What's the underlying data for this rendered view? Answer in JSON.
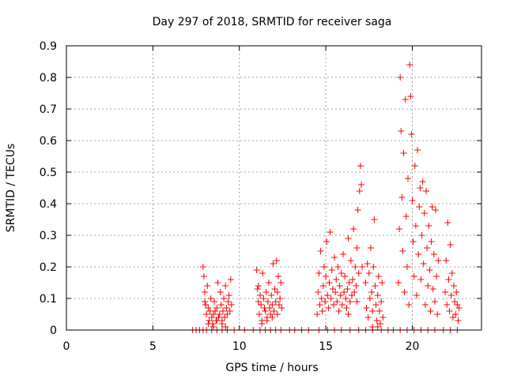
{
  "chart_data": {
    "type": "scatter",
    "title": "Day 297 of 2018, SRMTID for receiver saga",
    "xlabel": "GPS time / hours",
    "ylabel": "SRMTID / TECUs",
    "xlim": [
      0,
      24
    ],
    "ylim": [
      0,
      0.9
    ],
    "xticks": [
      0,
      5,
      10,
      15,
      20
    ],
    "yticks": [
      0,
      0.1,
      0.2,
      0.3,
      0.4,
      0.5,
      0.6,
      0.7,
      0.8,
      0.9
    ],
    "x_tick_labels": [
      "0",
      "5",
      "10",
      "15",
      "20"
    ],
    "y_tick_labels": [
      "0",
      "0.1",
      "0.2",
      "0.3",
      "0.4",
      "0.5",
      "0.6",
      "0.7",
      "0.8",
      "0.9"
    ],
    "grid": true,
    "marker": "+",
    "color": "#ff0000",
    "series": [
      {
        "name": "SRMTID",
        "points": [
          [
            7.3,
            0
          ],
          [
            7.5,
            0
          ],
          [
            7.7,
            0
          ],
          [
            7.9,
            0
          ],
          [
            8.1,
            0
          ],
          [
            8.4,
            0
          ],
          [
            8.7,
            0
          ],
          [
            9.0,
            0
          ],
          [
            9.3,
            0
          ],
          [
            9.7,
            0
          ],
          [
            7.9,
            0.2
          ],
          [
            7.95,
            0.17
          ],
          [
            8.0,
            0.12
          ],
          [
            8.05,
            0.08
          ],
          [
            8.1,
            0.05
          ],
          [
            8.15,
            0.14
          ],
          [
            8.2,
            0.07
          ],
          [
            8.25,
            0.03
          ],
          [
            8.3,
            0.06
          ],
          [
            8.35,
            0.1
          ],
          [
            8.4,
            0.04
          ],
          [
            8.45,
            0.02
          ],
          [
            8.5,
            0.05
          ],
          [
            8.55,
            0.09
          ],
          [
            8.6,
            0.06
          ],
          [
            8.65,
            0.03
          ],
          [
            8.7,
            0.07
          ],
          [
            8.75,
            0.15
          ],
          [
            8.8,
            0.04
          ],
          [
            8.85,
            0.05
          ],
          [
            8.9,
            0.12
          ],
          [
            8.95,
            0.08
          ],
          [
            9.0,
            0.03
          ],
          [
            9.05,
            0.06
          ],
          [
            9.1,
            0.1
          ],
          [
            9.15,
            0.04
          ],
          [
            9.2,
            0.14
          ],
          [
            9.25,
            0.07
          ],
          [
            9.3,
            0.05
          ],
          [
            9.35,
            0.09
          ],
          [
            9.4,
            0.11
          ],
          [
            9.45,
            0.06
          ],
          [
            9.5,
            0.16
          ],
          [
            9.55,
            0.08
          ],
          [
            8.2,
            0.02
          ],
          [
            8.5,
            0.01
          ],
          [
            8.7,
            0.03
          ],
          [
            9.0,
            0.02
          ],
          [
            9.2,
            0.01
          ],
          [
            8.0,
            0.09
          ],
          [
            10.3,
            0
          ],
          [
            10.8,
            0
          ],
          [
            11.2,
            0
          ],
          [
            11.5,
            0
          ],
          [
            11.8,
            0
          ],
          [
            12.1,
            0
          ],
          [
            12.4,
            0
          ],
          [
            12.9,
            0
          ],
          [
            11.0,
            0.19
          ],
          [
            11.05,
            0.13
          ],
          [
            11.1,
            0.09
          ],
          [
            11.15,
            0.05
          ],
          [
            11.2,
            0.11
          ],
          [
            11.25,
            0.08
          ],
          [
            11.3,
            0.03
          ],
          [
            11.35,
            0.18
          ],
          [
            11.4,
            0.1
          ],
          [
            11.45,
            0.07
          ],
          [
            11.5,
            0.06
          ],
          [
            11.55,
            0.12
          ],
          [
            11.6,
            0.04
          ],
          [
            11.65,
            0.09
          ],
          [
            11.7,
            0.15
          ],
          [
            11.75,
            0.07
          ],
          [
            11.8,
            0.05
          ],
          [
            11.85,
            0.11
          ],
          [
            11.9,
            0.08
          ],
          [
            11.95,
            0.21
          ],
          [
            12.0,
            0.06
          ],
          [
            12.05,
            0.13
          ],
          [
            12.1,
            0.09
          ],
          [
            12.15,
            0.22
          ],
          [
            12.2,
            0.12
          ],
          [
            12.25,
            0.17
          ],
          [
            12.3,
            0.08
          ],
          [
            12.35,
            0.1
          ],
          [
            12.4,
            0.15
          ],
          [
            12.45,
            0.07
          ],
          [
            11.3,
            0.02
          ],
          [
            11.6,
            0.03
          ],
          [
            11.9,
            0.04
          ],
          [
            12.2,
            0.05
          ],
          [
            11.1,
            0.14
          ],
          [
            13.2,
            0
          ],
          [
            13.6,
            0
          ],
          [
            14.0,
            0
          ],
          [
            14.6,
            0
          ],
          [
            15.1,
            0
          ],
          [
            15.5,
            0
          ],
          [
            15.9,
            0
          ],
          [
            16.4,
            0
          ],
          [
            16.9,
            0
          ],
          [
            17.3,
            0
          ],
          [
            17.7,
            0
          ],
          [
            18.2,
            0
          ],
          [
            18.6,
            0
          ],
          [
            14.5,
            0.05
          ],
          [
            14.55,
            0.12
          ],
          [
            14.6,
            0.18
          ],
          [
            14.65,
            0.08
          ],
          [
            14.7,
            0.25
          ],
          [
            14.75,
            0.1
          ],
          [
            14.8,
            0.06
          ],
          [
            14.85,
            0.14
          ],
          [
            14.9,
            0.2
          ],
          [
            14.95,
            0.09
          ],
          [
            15.0,
            0.17
          ],
          [
            15.05,
            0.28
          ],
          [
            15.1,
            0.11
          ],
          [
            15.15,
            0.07
          ],
          [
            15.2,
            0.15
          ],
          [
            15.25,
            0.31
          ],
          [
            15.3,
            0.1
          ],
          [
            15.35,
            0.19
          ],
          [
            15.4,
            0.13
          ],
          [
            15.45,
            0.08
          ],
          [
            15.5,
            0.23
          ],
          [
            15.55,
            0.12
          ],
          [
            15.6,
            0.16
          ],
          [
            15.65,
            0.09
          ],
          [
            15.7,
            0.2
          ],
          [
            15.75,
            0.06
          ],
          [
            15.8,
            0.14
          ],
          [
            15.85,
            0.11
          ],
          [
            15.9,
            0.18
          ],
          [
            15.95,
            0.08
          ],
          [
            16.0,
            0.24
          ],
          [
            16.05,
            0.12
          ],
          [
            16.1,
            0.17
          ],
          [
            16.15,
            0.1
          ],
          [
            16.2,
            0.07
          ],
          [
            16.25,
            0.13
          ],
          [
            16.3,
            0.29
          ],
          [
            16.35,
            0.15
          ],
          [
            16.4,
            0.09
          ],
          [
            16.45,
            0.22
          ],
          [
            16.5,
            0.11
          ],
          [
            16.55,
            0.16
          ],
          [
            16.6,
            0.32
          ],
          [
            16.65,
            0.12
          ],
          [
            16.7,
            0.2
          ],
          [
            16.75,
            0.14
          ],
          [
            16.8,
            0.26
          ],
          [
            16.85,
            0.38
          ],
          [
            16.9,
            0.18
          ],
          [
            16.95,
            0.44
          ],
          [
            17.0,
            0.52
          ],
          [
            17.05,
            0.46
          ],
          [
            17.1,
            0.2
          ],
          [
            16.8,
            0.09
          ],
          [
            16.3,
            0.05
          ],
          [
            17.3,
            0.15
          ],
          [
            17.35,
            0.07
          ],
          [
            17.4,
            0.21
          ],
          [
            17.45,
            0.04
          ],
          [
            17.5,
            0.18
          ],
          [
            17.55,
            0.1
          ],
          [
            17.6,
            0.26
          ],
          [
            17.65,
            0.12
          ],
          [
            17.7,
            0.06
          ],
          [
            17.75,
            0.2
          ],
          [
            17.8,
            0.35
          ],
          [
            17.85,
            0.14
          ],
          [
            17.9,
            0.08
          ],
          [
            17.95,
            0.03
          ],
          [
            18.0,
            0.11
          ],
          [
            18.05,
            0.17
          ],
          [
            18.1,
            0.06
          ],
          [
            18.15,
            0.02
          ],
          [
            18.2,
            0.09
          ],
          [
            18.25,
            0.15
          ],
          [
            18.3,
            0.04
          ],
          [
            17.7,
            0.01
          ],
          [
            18.0,
            0.01
          ],
          [
            18.9,
            0
          ],
          [
            19.3,
            0
          ],
          [
            19.7,
            0
          ],
          [
            20.1,
            0
          ],
          [
            20.5,
            0
          ],
          [
            20.9,
            0
          ],
          [
            21.3,
            0
          ],
          [
            21.8,
            0
          ],
          [
            22.2,
            0
          ],
          [
            22.6,
            0
          ],
          [
            19.2,
            0.15
          ],
          [
            19.25,
            0.32
          ],
          [
            19.3,
            0.8
          ],
          [
            19.35,
            0.63
          ],
          [
            19.4,
            0.42
          ],
          [
            19.45,
            0.25
          ],
          [
            19.5,
            0.56
          ],
          [
            19.55,
            0.12
          ],
          [
            19.6,
            0.73
          ],
          [
            19.65,
            0.36
          ],
          [
            19.7,
            0.2
          ],
          [
            19.75,
            0.48
          ],
          [
            19.8,
            0.08
          ],
          [
            19.85,
            0.84
          ],
          [
            19.9,
            0.74
          ],
          [
            19.95,
            0.62
          ],
          [
            20.0,
            0.41
          ],
          [
            20.05,
            0.28
          ],
          [
            20.1,
            0.17
          ],
          [
            20.15,
            0.52
          ],
          [
            20.2,
            0.33
          ],
          [
            20.25,
            0.11
          ],
          [
            20.3,
            0.57
          ],
          [
            20.35,
            0.24
          ],
          [
            20.4,
            0.39
          ],
          [
            20.45,
            0.45
          ],
          [
            20.5,
            0.16
          ],
          [
            20.55,
            0.3
          ],
          [
            20.6,
            0.47
          ],
          [
            20.65,
            0.21
          ],
          [
            20.7,
            0.37
          ],
          [
            20.75,
            0.08
          ],
          [
            20.8,
            0.44
          ],
          [
            20.85,
            0.26
          ],
          [
            20.9,
            0.14
          ],
          [
            20.95,
            0.33
          ],
          [
            21.0,
            0.19
          ],
          [
            21.05,
            0.06
          ],
          [
            21.1,
            0.28
          ],
          [
            21.15,
            0.39
          ],
          [
            21.2,
            0.13
          ],
          [
            21.25,
            0.24
          ],
          [
            21.3,
            0.09
          ],
          [
            21.35,
            0.38
          ],
          [
            21.4,
            0.17
          ],
          [
            21.45,
            0.05
          ],
          [
            21.5,
            0.22
          ],
          [
            21.9,
            0.12
          ],
          [
            21.95,
            0.22
          ],
          [
            22.0,
            0.08
          ],
          [
            22.05,
            0.34
          ],
          [
            22.1,
            0.16
          ],
          [
            22.15,
            0.06
          ],
          [
            22.2,
            0.27
          ],
          [
            22.25,
            0.11
          ],
          [
            22.3,
            0.18
          ],
          [
            22.35,
            0.04
          ],
          [
            22.4,
            0.14
          ],
          [
            22.45,
            0.09
          ],
          [
            22.5,
            0.05
          ],
          [
            22.55,
            0.12
          ],
          [
            22.6,
            0.08
          ],
          [
            22.65,
            0.03
          ],
          [
            22.7,
            0.07
          ]
        ]
      }
    ]
  }
}
